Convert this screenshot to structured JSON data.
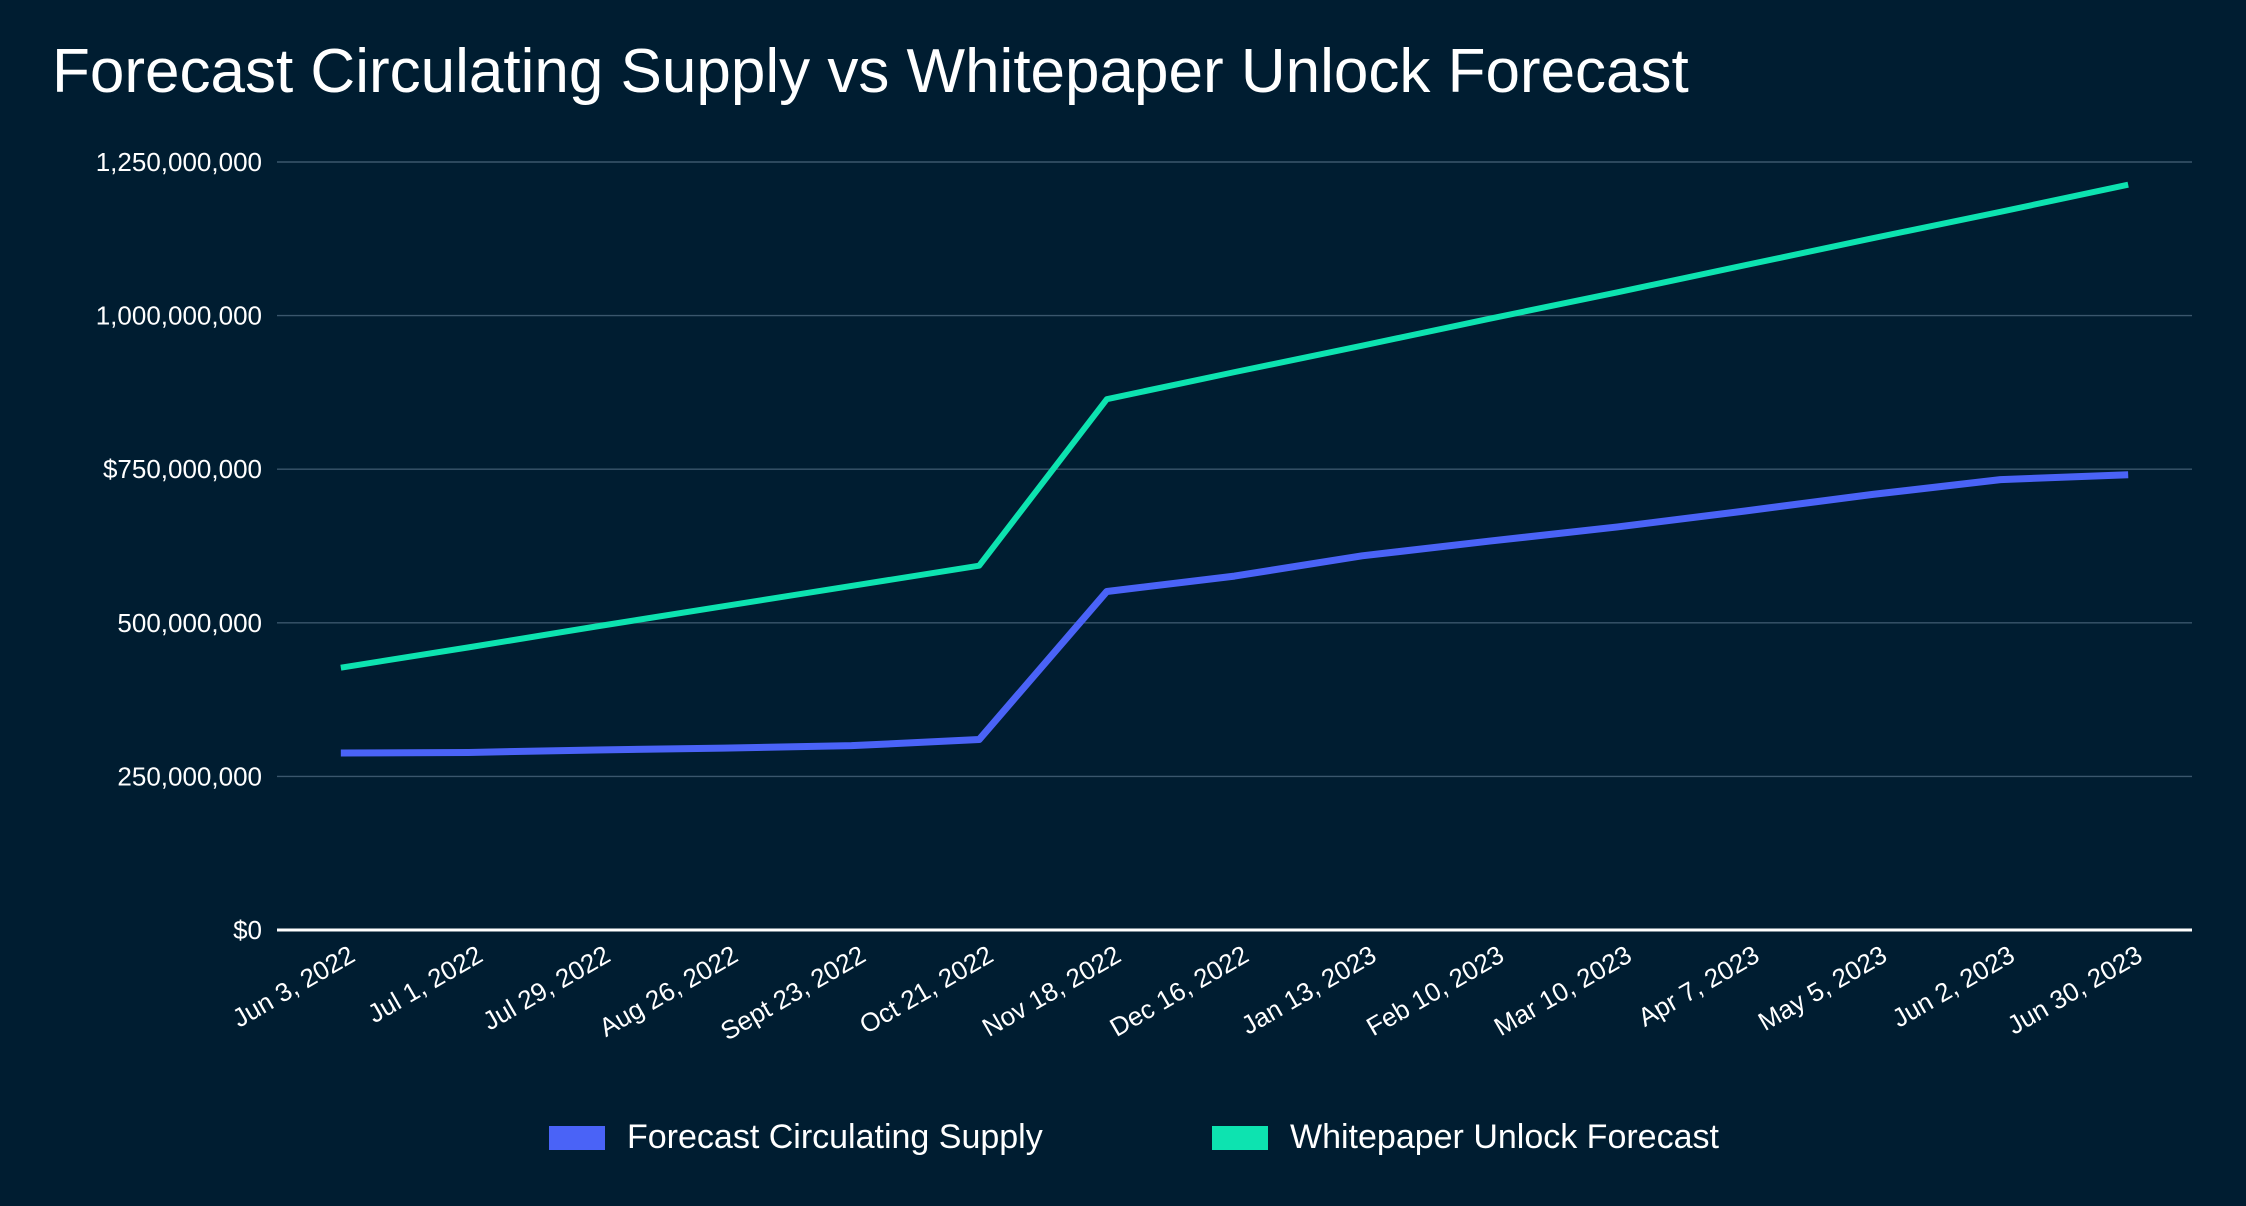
{
  "chart_data": {
    "type": "line",
    "title": "Forecast Circulating Supply vs Whitepaper Unlock Forecast",
    "categories": [
      "Jun 3, 2022",
      "Jul 1, 2022",
      "Jul 29, 2022",
      "Aug 26, 2022",
      "Sept 23, 2022",
      "Oct 21, 2022",
      "Nov 18, 2022",
      "Dec 16, 2022",
      "Jan 13, 2023",
      "Feb 10, 2023",
      "Mar 10, 2023",
      "Apr 7, 2023",
      "May 5, 2023",
      "Jun 2, 2023",
      "Jun 30, 2023"
    ],
    "series": [
      {
        "name": "Forecast Circulating Supply",
        "color": "#4a63f7",
        "values": [
          288000000,
          289000000,
          293000000,
          296000000,
          300000000,
          310000000,
          551000000,
          576000000,
          609000000,
          633000000,
          656000000,
          682000000,
          709000000,
          733000000,
          741000000
        ]
      },
      {
        "name": "Whitepaper Unlock Forecast",
        "color": "#0de3b0",
        "values": [
          427000000,
          460000000,
          494000000,
          527000000,
          560000000,
          593000000,
          864000000,
          908000000,
          951000000,
          995000000,
          1038000000,
          1082000000,
          1126000000,
          1169000000,
          1213000000
        ]
      }
    ],
    "y_ticks": [
      {
        "value": 0,
        "label": "$0"
      },
      {
        "value": 250000000,
        "label": "250,000,000"
      },
      {
        "value": 500000000,
        "label": "500,000,000"
      },
      {
        "value": 750000000,
        "label": "$750,000,000"
      },
      {
        "value": 1000000000,
        "label": "1,000,000,000"
      },
      {
        "value": 1250000000,
        "label": "1,250,000,000"
      }
    ],
    "ylim": [
      0,
      1250000000
    ],
    "xlabel": "",
    "ylabel": "",
    "grid": true,
    "legend_position": "bottom"
  },
  "colors": {
    "background": "#001d31",
    "grid": "#3a566c",
    "axis": "#ffffff"
  }
}
